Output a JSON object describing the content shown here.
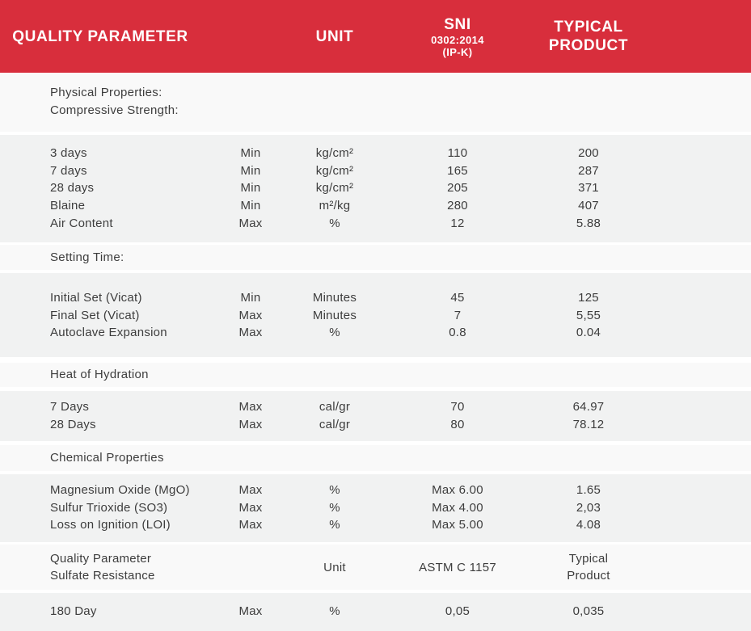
{
  "table": {
    "colors": {
      "header_bg": "#d82e3c",
      "header_text": "#ffffff",
      "data_band_bg": "#f1f2f2",
      "section_band_bg": "#f9f9f9",
      "body_text": "#3d3d3d"
    },
    "header": {
      "parameter": "QUALITY PARAMETER",
      "unit": "UNIT",
      "sni_line1": "SNI",
      "sni_line2": "0302:2014",
      "sni_line3": "(IP-K)",
      "typical": "TYPICAL PRODUCT"
    },
    "sections": [
      {
        "titles": [
          "Physical Properties:",
          "Compressive Strength:"
        ],
        "rows": [
          {
            "param": "3 days",
            "limit": "Min",
            "unit": "kg/cm²",
            "sni": "110",
            "typical": "200"
          },
          {
            "param": "7 days",
            "limit": "Min",
            "unit": "kg/cm²",
            "sni": "165",
            "typical": "287"
          },
          {
            "param": "28 days",
            "limit": "Min",
            "unit": "kg/cm²",
            "sni": "205",
            "typical": "371"
          },
          {
            "param": "Blaine",
            "limit": "Min",
            "unit": "m²/kg",
            "sni": "280",
            "typical": "407"
          },
          {
            "param": "Air Content",
            "limit": "Max",
            "unit": "%",
            "sni": "12",
            "typical": "5.88"
          }
        ]
      },
      {
        "titles": [
          "Setting Time:"
        ],
        "rows": [
          {
            "param": "Initial Set (Vicat)",
            "limit": "Min",
            "unit": "Minutes",
            "sni": "45",
            "typical": "125"
          },
          {
            "param": "Final Set (Vicat)",
            "limit": "Max",
            "unit": "Minutes",
            "sni": "7",
            "typical": "5,55"
          },
          {
            "param": "Autoclave Expansion",
            "limit": "Max",
            "unit": "%",
            "sni": "0.8",
            "typical": "0.04"
          }
        ]
      },
      {
        "titles": [
          "Heat of Hydration"
        ],
        "rows": [
          {
            "param": "7 Days",
            "limit": "Max",
            "unit": "cal/gr",
            "sni": "70",
            "typical": "64.97"
          },
          {
            "param": "28 Days",
            "limit": "Max",
            "unit": "cal/gr",
            "sni": "80",
            "typical": "78.12"
          }
        ]
      },
      {
        "titles": [
          "Chemical Properties"
        ],
        "rows": [
          {
            "param": "Magnesium Oxide (MgO)",
            "limit": "Max",
            "unit": "%",
            "sni": "Max 6.00",
            "typical": "1.65"
          },
          {
            "param": "Sulfur Trioxide (SO3)",
            "limit": "Max",
            "unit": "%",
            "sni": "Max 4.00",
            "typical": "2,03"
          },
          {
            "param": "Loss on Ignition (LOI)",
            "limit": "Max",
            "unit": "%",
            "sni": "Max 5.00",
            "typical": "4.08"
          }
        ]
      }
    ],
    "subheader": {
      "title_line1": "Quality Parameter",
      "title_line2": "Sulfate Resistance",
      "unit": "Unit",
      "standard": "ASTM C 1157",
      "typical_line1": "Typical",
      "typical_line2": "Product"
    },
    "sulfate_rows": [
      {
        "param": "180 Day",
        "limit": "Max",
        "unit": "%",
        "sni": "0,05",
        "typical": "0,035"
      }
    ]
  }
}
